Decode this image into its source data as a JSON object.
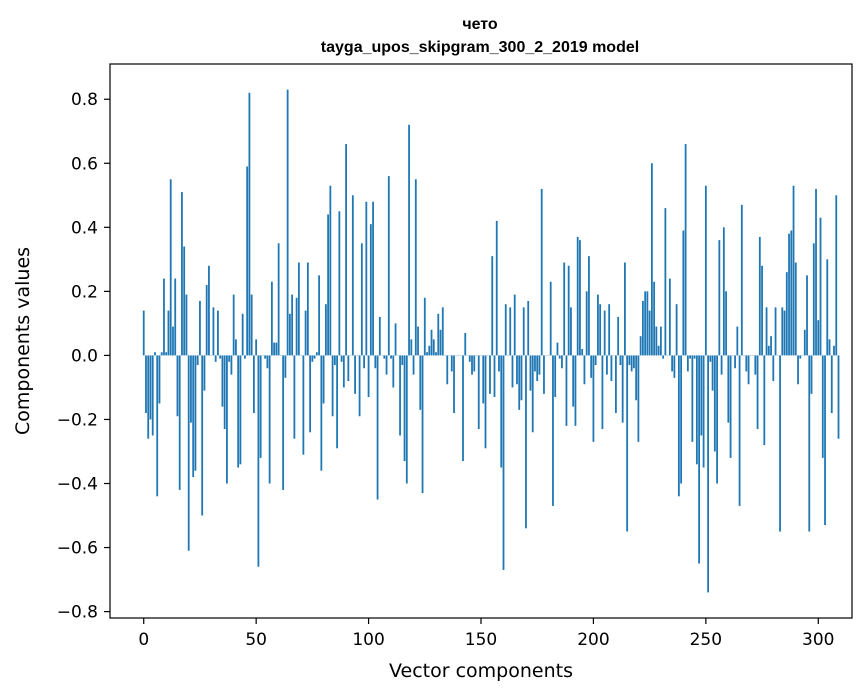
{
  "chart_data": {
    "type": "bar",
    "title_line1": "чето",
    "title_line2": "tayga_upos_skipgram_300_2_2019 model",
    "xlabel": "Vector components",
    "ylabel": "Components values",
    "xlim": [
      -15,
      315
    ],
    "ylim": [
      -0.82,
      0.91
    ],
    "x_ticks": [
      0,
      50,
      100,
      150,
      200,
      250,
      300
    ],
    "x_tick_labels": [
      "0",
      "50",
      "100",
      "150",
      "200",
      "250",
      "300"
    ],
    "y_ticks": [
      -0.8,
      -0.6,
      -0.4,
      -0.2,
      0.0,
      0.2,
      0.4,
      0.6,
      0.8
    ],
    "y_tick_labels": [
      "−0.8",
      "−0.6",
      "−0.4",
      "−0.2",
      "0.0",
      "0.2",
      "0.4",
      "0.6",
      "0.8"
    ],
    "bar_color": "#1f77b4",
    "x_start": 0,
    "values": [
      0.14,
      -0.18,
      -0.26,
      -0.2,
      -0.25,
      0.01,
      -0.44,
      -0.15,
      0.01,
      0.24,
      0.01,
      0.14,
      0.55,
      0.09,
      0.24,
      -0.19,
      -0.42,
      0.51,
      0.34,
      0.19,
      -0.61,
      -0.21,
      -0.38,
      -0.36,
      -0.03,
      0.17,
      -0.5,
      -0.11,
      0.22,
      0.28,
      0.0,
      0.15,
      -0.02,
      0.14,
      -0.01,
      -0.16,
      -0.23,
      -0.4,
      -0.02,
      -0.06,
      0.19,
      0.05,
      -0.35,
      -0.34,
      0.13,
      -0.01,
      0.59,
      0.82,
      0.19,
      -0.18,
      0.05,
      -0.66,
      -0.32,
      0.0,
      -0.01,
      -0.04,
      -0.4,
      0.23,
      0.04,
      0.04,
      0.35,
      0.0,
      -0.42,
      -0.07,
      0.83,
      0.13,
      0.19,
      -0.26,
      0.18,
      0.29,
      0.0,
      -0.31,
      0.14,
      0.29,
      -0.24,
      -0.02,
      -0.01,
      0.01,
      0.25,
      -0.36,
      -0.15,
      0.16,
      0.44,
      0.53,
      -0.19,
      -0.03,
      -0.29,
      0.45,
      -0.02,
      -0.1,
      0.66,
      -0.08,
      0.0,
      0.5,
      -0.12,
      0.0,
      -0.19,
      0.35,
      -0.04,
      0.48,
      -0.13,
      0.41,
      0.48,
      -0.04,
      -0.45,
      0.12,
      0.0,
      -0.01,
      -0.06,
      0.56,
      -0.01,
      -0.1,
      0.1,
      0.0,
      -0.25,
      -0.03,
      -0.33,
      -0.4,
      0.72,
      0.05,
      -0.06,
      0.55,
      0.09,
      -0.17,
      -0.43,
      0.18,
      0.01,
      0.03,
      0.08,
      0.05,
      0.01,
      0.13,
      0.08,
      0.15,
      0.0,
      -0.09,
      0.0,
      -0.05,
      -0.18,
      0.0,
      0.0,
      0.0,
      -0.33,
      0.07,
      0.0,
      -0.02,
      -0.06,
      -0.05,
      0.0,
      -0.23,
      0.0,
      -0.15,
      -0.29,
      0.0,
      -0.12,
      0.31,
      -0.13,
      0.42,
      -0.05,
      -0.35,
      -0.67,
      0.16,
      0.0,
      0.15,
      -0.1,
      0.19,
      -0.09,
      -0.17,
      -0.14,
      0.15,
      -0.54,
      0.17,
      -0.11,
      -0.24,
      -0.05,
      -0.08,
      -0.06,
      0.52,
      -0.12,
      0.0,
      0.0,
      0.23,
      -0.47,
      -0.13,
      0.04,
      -0.01,
      -0.04,
      0.29,
      -0.22,
      0.28,
      0.15,
      -0.16,
      -0.22,
      0.37,
      0.36,
      0.02,
      -0.09,
      0.2,
      0.31,
      -0.07,
      -0.27,
      -0.03,
      0.19,
      0.16,
      -0.23,
      0.14,
      -0.06,
      0.16,
      -0.08,
      0.0,
      -0.18,
      0.12,
      -0.03,
      -0.21,
      0.29,
      -0.55,
      -0.03,
      -0.05,
      -0.04,
      -0.14,
      -0.27,
      0.06,
      0.17,
      0.2,
      0.2,
      0.14,
      0.6,
      0.23,
      0.09,
      0.03,
      0.09,
      -0.01,
      0.46,
      0.0,
      0.24,
      -0.05,
      -0.07,
      0.16,
      -0.44,
      -0.4,
      0.39,
      0.66,
      -0.05,
      -0.01,
      -0.27,
      -0.01,
      -0.34,
      -0.65,
      -0.25,
      -0.35,
      0.53,
      -0.74,
      -0.02,
      -0.11,
      -0.3,
      -0.4,
      0.36,
      -0.06,
      0.4,
      0.2,
      -0.21,
      -0.32,
      0.0,
      -0.04,
      0.09,
      -0.47,
      0.47,
      0.0,
      -0.05,
      -0.09,
      0.0,
      0.0,
      -0.06,
      -0.23,
      0.37,
      0.28,
      -0.28,
      0.15,
      0.03,
      0.06,
      -0.08,
      0.15,
      0.0,
      -0.55,
      0.15,
      0.14,
      0.26,
      0.38,
      0.39,
      0.53,
      0.29,
      -0.09,
      -0.01,
      0.0,
      0.08,
      0.25,
      -0.55,
      -0.12,
      0.35,
      0.52,
      0.11,
      0.43,
      -0.32,
      -0.53,
      0.3,
      0.05,
      -0.18,
      0.03,
      0.5,
      -0.26
    ]
  }
}
